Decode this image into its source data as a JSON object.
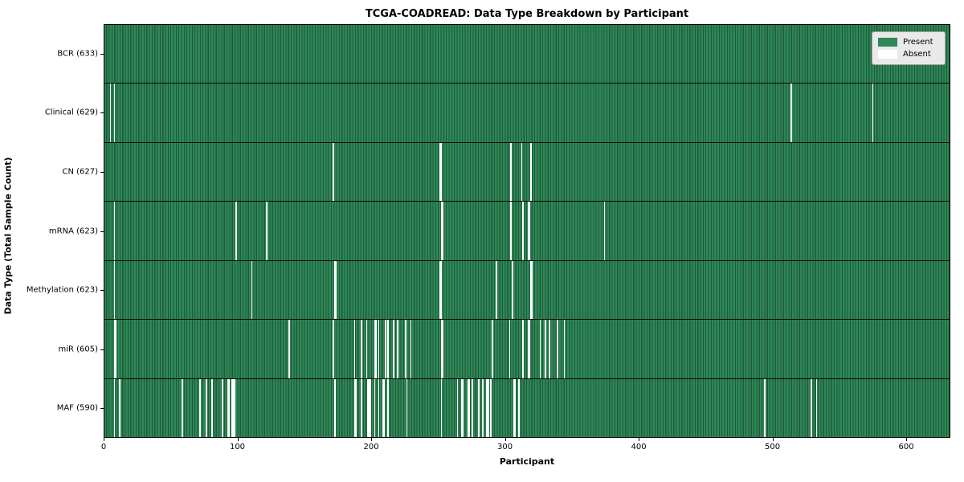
{
  "title": "TCGA-COADREAD: Data Type Breakdown by Participant",
  "xlabel": "Participant",
  "ylabel": "Data Type (Total Sample Count)",
  "legend": {
    "present_label": "Present",
    "absent_label": "Absent"
  },
  "colors": {
    "present": "#2e8757",
    "present_edge": "#1d5a38",
    "absent": "#ffffff",
    "legend_bg": "#e9e9e9"
  },
  "chart_data": {
    "type": "heatmap",
    "title": "TCGA-COADREAD: Data Type Breakdown by Participant",
    "xlabel": "Participant",
    "ylabel": "Data Type (Total Sample Count)",
    "legend_entries": [
      "Present",
      "Absent"
    ],
    "legend_position": "upper right",
    "total_participants": 633,
    "x_ticks": [
      0,
      100,
      200,
      300,
      400,
      500,
      600
    ],
    "xlim": [
      0,
      633
    ],
    "rows": [
      {
        "label": "BCR (633)",
        "name": "BCR",
        "count": 633,
        "absent": []
      },
      {
        "label": "Clinical (629)",
        "name": "Clinical",
        "count": 629,
        "absent": [
          4,
          7,
          514,
          575
        ]
      },
      {
        "label": "CN (627)",
        "name": "CN",
        "count": 627,
        "absent": [
          171,
          251,
          252,
          304,
          312,
          319
        ]
      },
      {
        "label": "mRNA (623)",
        "name": "mRNA",
        "count": 623,
        "absent": [
          7,
          98,
          121,
          252,
          253,
          304,
          313,
          317,
          318,
          374
        ]
      },
      {
        "label": "Methylation (623)",
        "name": "Methylation",
        "count": 623,
        "absent": [
          7,
          110,
          172,
          173,
          251,
          252,
          293,
          305,
          319,
          320
        ]
      },
      {
        "label": "miR (605)",
        "name": "miR",
        "count": 605,
        "absent": [
          7,
          8,
          138,
          171,
          187,
          192,
          196,
          202,
          203,
          205,
          210,
          212,
          216,
          219,
          225,
          229,
          252,
          253,
          290,
          303,
          313,
          317,
          318,
          326,
          330,
          333,
          339,
          344
        ]
      },
      {
        "label": "MAF (590)",
        "name": "MAF",
        "count": 590,
        "absent": [
          7,
          11,
          58,
          71,
          76,
          80,
          88,
          92,
          93,
          95,
          96,
          97,
          172,
          187,
          188,
          192,
          197,
          198,
          199,
          202,
          205,
          208,
          209,
          212,
          226,
          252,
          264,
          267,
          268,
          272,
          273,
          275,
          280,
          283,
          286,
          287,
          289,
          306,
          307,
          310,
          494,
          529,
          533
        ]
      }
    ]
  }
}
